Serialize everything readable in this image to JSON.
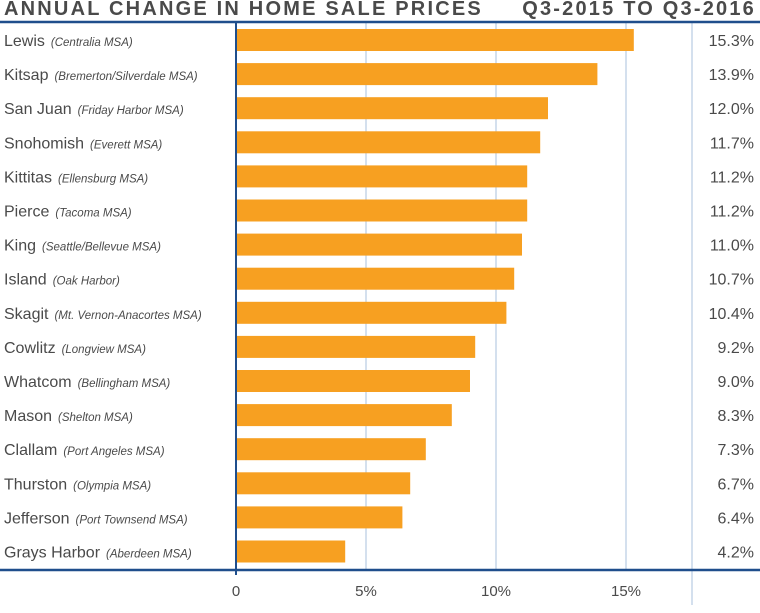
{
  "chart_data": {
    "type": "bar",
    "orientation": "horizontal",
    "title": "ANNUAL CHANGE IN HOME SALE PRICES",
    "subtitle": "Q3-2015 TO Q3-2016",
    "categories": [
      {
        "name": "Lewis",
        "detail": "(Centralia MSA)"
      },
      {
        "name": "Kitsap",
        "detail": "(Bremerton/Silverdale MSA)"
      },
      {
        "name": "San Juan",
        "detail": "(Friday Harbor MSA)"
      },
      {
        "name": "Snohomish",
        "detail": "(Everett MSA)"
      },
      {
        "name": "Kittitas",
        "detail": "(Ellensburg MSA)"
      },
      {
        "name": "Pierce",
        "detail": "(Tacoma MSA)"
      },
      {
        "name": "King",
        "detail": "(Seattle/Bellevue MSA)"
      },
      {
        "name": "Island",
        "detail": "(Oak Harbor)"
      },
      {
        "name": "Skagit",
        "detail": "(Mt. Vernon-Anacortes MSA)"
      },
      {
        "name": "Cowlitz",
        "detail": "(Longview MSA)"
      },
      {
        "name": "Whatcom",
        "detail": "(Bellingham MSA)"
      },
      {
        "name": "Mason",
        "detail": "(Shelton MSA)"
      },
      {
        "name": "Clallam",
        "detail": "(Port Angeles MSA)"
      },
      {
        "name": "Thurston",
        "detail": "(Olympia MSA)"
      },
      {
        "name": "Jefferson",
        "detail": "(Port Townsend MSA)"
      },
      {
        "name": "Grays Harbor",
        "detail": "(Aberdeen MSA)"
      }
    ],
    "values": [
      15.3,
      13.9,
      12.0,
      11.7,
      11.2,
      11.2,
      11.0,
      10.7,
      10.4,
      9.2,
      9.0,
      8.3,
      7.3,
      6.7,
      6.4,
      4.2
    ],
    "value_labels": [
      "15.3%",
      "13.9%",
      "12.0%",
      "11.7%",
      "11.2%",
      "11.2%",
      "11.0%",
      "10.7%",
      "10.4%",
      "9.2%",
      "9.0%",
      "8.3%",
      "7.3%",
      "6.7%",
      "6.4%",
      "4.2%"
    ],
    "xticks": [
      0,
      5,
      10,
      15
    ],
    "xtick_labels": [
      "0",
      "5%",
      "10%",
      "15%"
    ],
    "xlim": [
      0,
      17.5
    ],
    "xlabel": "",
    "ylabel": "",
    "grid": true,
    "colors": {
      "bar": "#F7A021",
      "axis": "#1F4E8C",
      "grid": "#A9C1DD",
      "text": "#4A4A4A"
    }
  }
}
